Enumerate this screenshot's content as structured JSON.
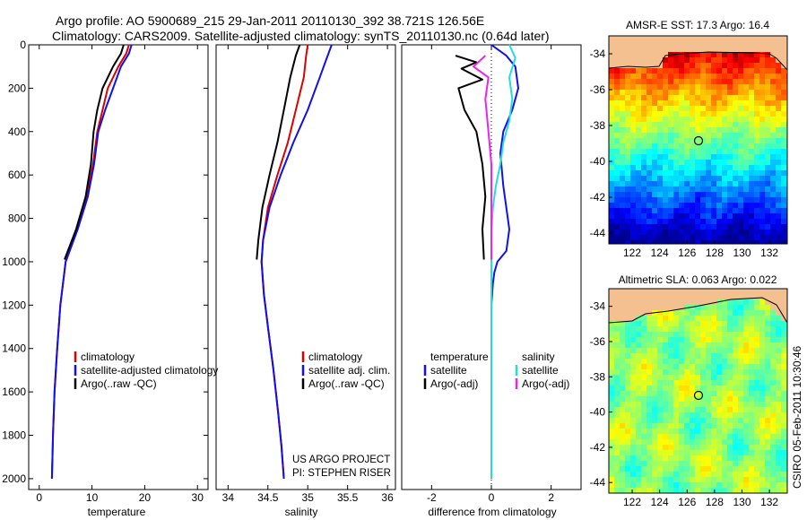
{
  "header": {
    "line1": "Argo profile: AO 5900689_215 29-Jan-2011 20110130_392 38.721S 126.56E",
    "line2": "Climatology: CARS2009. Satellite-adjusted climatology: synTS_20110130.nc (0.64d later)"
  },
  "footer": {
    "project": "US ARGO PROJECT",
    "pi": "PI: STEPHEN RISER",
    "stamp": "CSIRO 05-Feb-2011 10:30:46"
  },
  "colors": {
    "climatology": "#dd0000",
    "satellite": "#1010ee",
    "argo": "#000000",
    "salinity_satellite": "#22dddd",
    "salinity_argo": "#ee22ee",
    "land": "#f5c090"
  },
  "chart_data": [
    {
      "type": "line",
      "xlabel": "temperature",
      "ylabel": "",
      "xlim": [
        -2,
        32
      ],
      "ylim": [
        2050,
        0
      ],
      "xticks": [
        0,
        10,
        20,
        30
      ],
      "yticks": [
        0,
        200,
        400,
        600,
        800,
        1000,
        1200,
        1400,
        1600,
        1800,
        2000
      ],
      "legend": [
        "climatology",
        "satellite-adjusted climatology",
        "Argo(..raw -QC)"
      ],
      "series": [
        {
          "name": "climatology",
          "color": "#dd0000",
          "x": [
            17.0,
            16.5,
            15.0,
            13.0,
            12.0,
            11.0,
            10.2,
            9.0,
            7.2,
            5.0,
            4.0,
            3.4,
            2.9,
            2.6,
            2.4
          ],
          "y": [
            0,
            40,
            100,
            200,
            300,
            400,
            550,
            700,
            850,
            1000,
            1200,
            1400,
            1600,
            1800,
            2000
          ]
        },
        {
          "name": "satellite-adjusted climatology",
          "color": "#1010ee",
          "x": [
            17.5,
            17.0,
            15.5,
            14.0,
            12.5,
            11.2,
            10.4,
            9.2,
            7.3,
            5.0,
            4.0,
            3.4,
            2.9,
            2.6,
            2.4
          ],
          "y": [
            0,
            40,
            100,
            200,
            300,
            400,
            550,
            700,
            850,
            1000,
            1200,
            1400,
            1600,
            1800,
            2000
          ]
        },
        {
          "name": "Argo(..raw -QC)",
          "color": "#000000",
          "x": [
            16.0,
            15.5,
            14.0,
            12.0,
            11.0,
            10.3,
            9.8,
            8.8,
            7.0,
            4.8
          ],
          "y": [
            0,
            40,
            100,
            200,
            300,
            400,
            550,
            700,
            850,
            990
          ]
        }
      ]
    },
    {
      "type": "line",
      "xlabel": "salinity",
      "ylabel": "",
      "xlim": [
        33.85,
        36.1
      ],
      "ylim": [
        2050,
        0
      ],
      "xticks": [
        34,
        34.5,
        35,
        35.5,
        36
      ],
      "yticks": [],
      "legend": [
        "climatology",
        "satellite adj. clim.",
        "Argo(..raw -QC)"
      ],
      "series": [
        {
          "name": "climatology",
          "color": "#dd0000",
          "x": [
            35.0,
            34.98,
            34.95,
            34.85,
            34.75,
            34.62,
            34.5,
            34.44,
            34.42,
            34.45,
            34.5,
            34.57,
            34.63,
            34.67,
            34.7
          ],
          "y": [
            0,
            50,
            150,
            300,
            450,
            600,
            750,
            900,
            1000,
            1150,
            1300,
            1500,
            1700,
            1850,
            2000
          ]
        },
        {
          "name": "satellite adj. clim.",
          "color": "#1010ee",
          "x": [
            35.3,
            35.25,
            35.15,
            35.0,
            34.82,
            34.66,
            34.52,
            34.44,
            34.42,
            34.45,
            34.5,
            34.57,
            34.63,
            34.67,
            34.7
          ],
          "y": [
            0,
            50,
            150,
            300,
            450,
            600,
            750,
            900,
            1000,
            1150,
            1300,
            1500,
            1700,
            1850,
            2000
          ]
        },
        {
          "name": "Argo(..raw -QC)",
          "color": "#000000",
          "x": [
            34.9,
            34.85,
            34.78,
            34.7,
            34.62,
            34.52,
            34.43,
            34.38,
            34.36
          ],
          "y": [
            0,
            50,
            150,
            300,
            450,
            600,
            750,
            900,
            990
          ]
        }
      ]
    },
    {
      "type": "line",
      "xlabel": "difference from climatology",
      "ylabel": "",
      "xlim": [
        -3,
        3
      ],
      "ylim": [
        2050,
        0
      ],
      "xticks": [
        -2,
        0,
        2
      ],
      "yticks": [],
      "legend": [
        "temperature",
        "satellite",
        "Argo(-adj)",
        "salinity",
        "satellite",
        "Argo(-adj)"
      ],
      "series": [
        {
          "name": "temperature satellite",
          "color": "#1010ee",
          "x": [
            0.0,
            0.5,
            0.8,
            0.9,
            0.7,
            0.4,
            0.3,
            0.4,
            0.6,
            0.5,
            0.2,
            0.1,
            0.05,
            0.0,
            0.0,
            0.0,
            0.0
          ],
          "y": [
            0,
            50,
            100,
            200,
            300,
            400,
            500,
            650,
            850,
            950,
            1000,
            1050,
            1100,
            1200,
            1400,
            1700,
            2000
          ]
        },
        {
          "name": "temperature Argo(-adj)",
          "color": "#000000",
          "x": [
            -1.2,
            -0.5,
            -1.0,
            -0.3,
            -1.1,
            -0.9,
            -0.5,
            -0.3,
            -0.2,
            -0.3,
            -0.25
          ],
          "y": [
            50,
            80,
            110,
            160,
            200,
            300,
            400,
            550,
            700,
            850,
            990
          ]
        },
        {
          "name": "salinity satellite",
          "color": "#22dddd",
          "x": [
            0.6,
            0.8,
            0.6,
            0.7,
            0.6,
            0.4,
            0.3,
            0.15,
            0.05,
            0.0,
            0.0,
            0.0
          ],
          "y": [
            0,
            60,
            150,
            250,
            350,
            450,
            550,
            650,
            750,
            850,
            1200,
            2000
          ]
        },
        {
          "name": "salinity Argo(-adj)",
          "color": "#ee22ee",
          "x": [
            -0.2,
            -0.6,
            -0.1,
            -0.2,
            -0.1,
            0.0,
            0.0,
            0.0
          ],
          "y": [
            50,
            100,
            150,
            250,
            400,
            550,
            750,
            990
          ]
        }
      ]
    },
    {
      "type": "heatmap",
      "title": "AMSR-E SST: 17.3 Argo: 16.4",
      "xticks": [
        122,
        124,
        126,
        128,
        130,
        132
      ],
      "yticks": [
        -34,
        -36,
        -38,
        -40,
        -42,
        -44
      ],
      "marker": {
        "lon": 126.56,
        "lat": -38.72
      }
    },
    {
      "type": "heatmap",
      "title": "Altimetric SLA: 0.063 Argo: 0.022",
      "xticks": [
        122,
        124,
        126,
        128,
        130,
        132
      ],
      "yticks": [
        -34,
        -36,
        -38,
        -40,
        -42,
        -44
      ],
      "marker": {
        "lon": 126.56,
        "lat": -38.72
      }
    }
  ]
}
